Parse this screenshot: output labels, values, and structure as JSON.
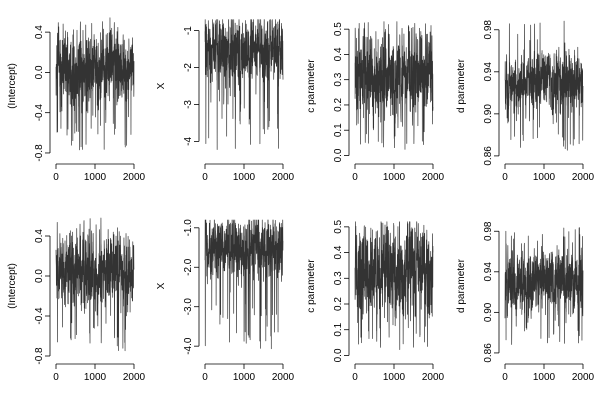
{
  "colors": {
    "trace": "#333333",
    "axis": "#000000",
    "background": "#ffffff"
  },
  "chart_data": [
    {
      "type": "line",
      "ylabel": "(Intercept)",
      "x_ticks": [
        0,
        1000,
        2000
      ],
      "y_ticks": [
        "-0.8",
        "-0.4",
        "0.0",
        "0.4"
      ],
      "xlim": [
        0,
        2000
      ],
      "ylim": [
        -0.85,
        0.58
      ],
      "center": 0.05,
      "spread": 0.16,
      "low_extreme": -0.78,
      "high_extreme": 0.55,
      "grid": false
    },
    {
      "type": "line",
      "ylabel": "X",
      "x_ticks": [
        0,
        1000,
        2000
      ],
      "y_ticks": [
        "-4",
        "-3",
        "-2",
        "-1"
      ],
      "xlim": [
        0,
        2000
      ],
      "ylim": [
        -4.45,
        -0.55
      ],
      "center": -1.5,
      "spread": 0.4,
      "low_extreme": -4.3,
      "high_extreme": -0.7,
      "grid": false
    },
    {
      "type": "line",
      "ylabel": "c parameter",
      "x_ticks": [
        0,
        1000,
        2000
      ],
      "y_ticks": [
        "0.0",
        "0.1",
        "0.2",
        "0.3",
        "0.4",
        "0.5"
      ],
      "xlim": [
        0,
        2000
      ],
      "ylim": [
        -0.01,
        0.56
      ],
      "center": 0.32,
      "spread": 0.07,
      "low_extreme": 0.02,
      "high_extreme": 0.53,
      "grid": false
    },
    {
      "type": "line",
      "ylabel": "d parameter",
      "x_ticks": [
        0,
        1000,
        2000
      ],
      "y_ticks": [
        "0.86",
        "0.90",
        "0.94",
        "0.98"
      ],
      "xlim": [
        0,
        2000
      ],
      "ylim": [
        0.858,
        0.995
      ],
      "center": 0.93,
      "spread": 0.013,
      "low_extreme": 0.865,
      "high_extreme": 0.99,
      "grid": false
    },
    {
      "type": "line",
      "ylabel": "(Intercept)",
      "x_ticks": [
        0,
        1000,
        2000
      ],
      "y_ticks": [
        "-0.8",
        "-0.4",
        "0.0",
        "0.4"
      ],
      "xlim": [
        0,
        2000
      ],
      "ylim": [
        -0.82,
        0.62
      ],
      "center": 0.05,
      "spread": 0.16,
      "low_extreme": -0.75,
      "high_extreme": 0.58,
      "grid": false
    },
    {
      "type": "line",
      "ylabel": "X",
      "x_ticks": [
        0,
        1000,
        2000
      ],
      "y_ticks": [
        "-4.0",
        "-3.0",
        "-2.0",
        "-1.0"
      ],
      "xlim": [
        0,
        2000
      ],
      "ylim": [
        -4.3,
        -0.65
      ],
      "center": -1.5,
      "spread": 0.35,
      "low_extreme": -4.1,
      "high_extreme": -0.8,
      "grid": false
    },
    {
      "type": "line",
      "ylabel": "c parameter",
      "x_ticks": [
        0,
        1000,
        2000
      ],
      "y_ticks": [
        "0.0",
        "0.1",
        "0.2",
        "0.3",
        "0.4",
        "0.5"
      ],
      "xlim": [
        0,
        2000
      ],
      "ylim": [
        -0.01,
        0.55
      ],
      "center": 0.32,
      "spread": 0.08,
      "low_extreme": 0.02,
      "high_extreme": 0.52,
      "grid": false
    },
    {
      "type": "line",
      "ylabel": "d parameter",
      "x_ticks": [
        0,
        1000,
        2000
      ],
      "y_ticks": [
        "0.86",
        "0.90",
        "0.94",
        "0.98"
      ],
      "xlim": [
        0,
        2000
      ],
      "ylim": [
        0.855,
        0.997
      ],
      "center": 0.93,
      "spread": 0.014,
      "low_extreme": 0.868,
      "high_extreme": 0.985,
      "grid": false
    }
  ]
}
